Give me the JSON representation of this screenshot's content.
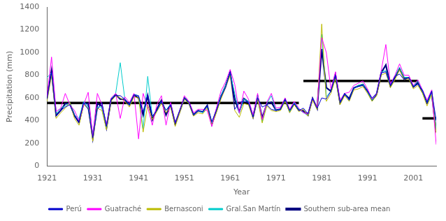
{
  "chart_data": {
    "type": "line",
    "xlabel": "Year",
    "ylabel": "Precipitation (mm)",
    "x": [
      1921,
      1922,
      1923,
      1924,
      1925,
      1926,
      1927,
      1928,
      1929,
      1930,
      1931,
      1932,
      1933,
      1934,
      1935,
      1936,
      1937,
      1938,
      1939,
      1940,
      1941,
      1942,
      1943,
      1944,
      1945,
      1946,
      1947,
      1948,
      1949,
      1950,
      1951,
      1952,
      1953,
      1954,
      1955,
      1956,
      1957,
      1958,
      1959,
      1960,
      1961,
      1962,
      1963,
      1964,
      1965,
      1966,
      1967,
      1968,
      1969,
      1970,
      1971,
      1972,
      1973,
      1974,
      1975,
      1976,
      1977,
      1978,
      1979,
      1980,
      1981,
      1982,
      1983,
      1984,
      1985,
      1986,
      1987,
      1988,
      1989,
      1990,
      1991,
      1992,
      1993,
      1994,
      1995,
      1996,
      1997,
      1998,
      1999,
      2000,
      2001,
      2002,
      2003,
      2004,
      2005,
      2006
    ],
    "series": [
      {
        "name": "Perú",
        "color": "#0000CD",
        "values": [
          590,
          830,
          440,
          490,
          520,
          540,
          450,
          390,
          560,
          500,
          250,
          500,
          560,
          350,
          590,
          620,
          620,
          590,
          540,
          630,
          620,
          480,
          630,
          440,
          490,
          570,
          490,
          540,
          380,
          490,
          600,
          560,
          450,
          490,
          480,
          530,
          390,
          490,
          610,
          690,
          830,
          500,
          560,
          570,
          560,
          430,
          600,
          520,
          540,
          500,
          490,
          500,
          590,
          490,
          550,
          490,
          510,
          460,
          600,
          510,
          600,
          590,
          660,
          800,
          560,
          640,
          580,
          690,
          700,
          710,
          660,
          600,
          640,
          820,
          830,
          710,
          790,
          810,
          760,
          780,
          700,
          720,
          670,
          560,
          660,
          400
        ]
      },
      {
        "name": "Guatraché",
        "color": "#FF00FF",
        "values": [
          610,
          960,
          480,
          510,
          640,
          540,
          490,
          400,
          540,
          650,
          260,
          640,
          540,
          360,
          600,
          640,
          420,
          610,
          560,
          640,
          240,
          640,
          520,
          360,
          540,
          620,
          360,
          560,
          380,
          490,
          620,
          570,
          470,
          500,
          500,
          490,
          350,
          510,
          660,
          740,
          850,
          720,
          470,
          660,
          590,
          450,
          640,
          410,
          560,
          640,
          510,
          520,
          600,
          500,
          570,
          510,
          470,
          460,
          600,
          520,
          1130,
          1000,
          680,
          830,
          580,
          640,
          650,
          710,
          730,
          750,
          680,
          590,
          640,
          840,
          1070,
          720,
          800,
          900,
          800,
          800,
          710,
          760,
          670,
          580,
          670,
          190
        ]
      },
      {
        "name": "Bernasconi",
        "color": "#BBBB00",
        "values": [
          570,
          800,
          420,
          470,
          510,
          560,
          420,
          360,
          540,
          510,
          220,
          510,
          490,
          320,
          570,
          620,
          600,
          570,
          520,
          610,
          600,
          300,
          540,
          410,
          480,
          550,
          470,
          520,
          350,
          470,
          590,
          550,
          440,
          470,
          460,
          510,
          360,
          470,
          590,
          690,
          800,
          490,
          430,
          550,
          540,
          420,
          590,
          380,
          530,
          490,
          480,
          490,
          570,
          470,
          540,
          480,
          500,
          440,
          580,
          500,
          1250,
          570,
          640,
          770,
          540,
          620,
          570,
          670,
          680,
          700,
          640,
          570,
          620,
          800,
          820,
          690,
          760,
          850,
          760,
          770,
          680,
          710,
          640,
          530,
          630,
          290
        ]
      },
      {
        "name": "Gral.San Martín",
        "color": "#00CCCC",
        "values": [
          780,
          820,
          460,
          510,
          530,
          560,
          450,
          420,
          570,
          520,
          280,
          520,
          520,
          340,
          590,
          640,
          910,
          590,
          540,
          630,
          620,
          330,
          790,
          440,
          490,
          570,
          490,
          550,
          380,
          480,
          600,
          560,
          450,
          490,
          470,
          530,
          380,
          490,
          620,
          710,
          820,
          640,
          470,
          590,
          570,
          440,
          620,
          390,
          550,
          620,
          490,
          500,
          590,
          480,
          560,
          500,
          470,
          450,
          600,
          510,
          1160,
          610,
          660,
          800,
          560,
          640,
          580,
          690,
          710,
          720,
          660,
          580,
          640,
          830,
          840,
          710,
          790,
          870,
          780,
          780,
          700,
          750,
          660,
          560,
          640,
          320
        ]
      },
      {
        "name": "Southern sub-area mean",
        "color": "#000080",
        "values": [
          600,
          840,
          445,
          490,
          550,
          550,
          445,
          385,
          555,
          550,
          250,
          550,
          530,
          340,
          585,
          630,
          590,
          585,
          540,
          625,
          600,
          450,
          620,
          410,
          500,
          580,
          450,
          543,
          372,
          483,
          600,
          558,
          452,
          488,
          476,
          534,
          370,
          490,
          614,
          706,
          823,
          586,
          480,
          594,
          564,
          434,
          610,
          424,
          545,
          562,
          493,
          502,
          586,
          484,
          554,
          494,
          486,
          449,
          596,
          508,
          1030,
          690,
          660,
          800,
          558,
          634,
          594,
          688,
          706,
          718,
          660,
          582,
          636,
          822,
          890,
          706,
          784,
          856,
          774,
          778,
          697,
          732,
          658,
          558,
          648,
          300
        ]
      }
    ],
    "segments": [
      {
        "x": [
          1921,
          1976
        ],
        "value": 555,
        "color": "#000000"
      },
      {
        "x": [
          1977,
          2002
        ],
        "value": 750,
        "color": "#000000"
      },
      {
        "x": [
          2003,
          2006
        ],
        "value": 420,
        "color": "#000000"
      }
    ],
    "xlim": [
      1921,
      2006
    ],
    "xticks": [
      1921,
      1931,
      1941,
      1951,
      1961,
      1971,
      1981,
      1991,
      2001
    ],
    "ylim": [
      0,
      1400
    ],
    "yticks": [
      0,
      200,
      400,
      600,
      800,
      1000,
      1200,
      1400
    ],
    "grid": false,
    "legend": "bottom"
  }
}
